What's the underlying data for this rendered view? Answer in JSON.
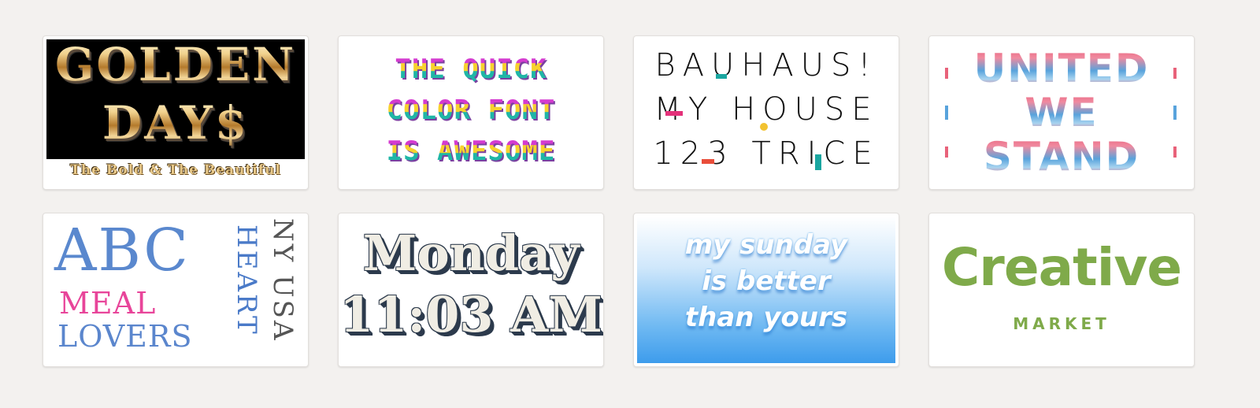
{
  "cards": [
    {
      "line1": "GOLDEN",
      "line2": "DAY$",
      "subtitle": "The Bold & The Beautiful"
    },
    {
      "lines": [
        "THE QUICK",
        "COLOR FONT",
        "IS AWESOME"
      ]
    },
    {
      "lines": [
        "BAUHAUS!",
        "MY HOUSE",
        "123 TRICE"
      ]
    },
    {
      "lines": [
        "UNITED",
        "WE",
        "STAND"
      ]
    },
    {
      "abc": "ABC",
      "meal": "MEAL",
      "lovers": "LOVERS",
      "heart": "HEART",
      "nyusa": "NY USA"
    },
    {
      "line1": "Monday",
      "line2": "11:03 AM"
    },
    {
      "lines": [
        "my sunday",
        "is better",
        "than yours"
      ]
    },
    {
      "title": "Creative",
      "subtitle": "MARKET"
    }
  ],
  "colors": {
    "background": "#f3f1ef",
    "card": "#ffffff",
    "gold": "#e8c98a",
    "magenta": "#d43bd0",
    "teal": "#1aa6a0",
    "red": "#e8627a",
    "blue": "#3e74c6",
    "pink": "#e8459a",
    "navy": "#2c3a4c",
    "sky": "#3d9cec",
    "green": "#7faa4a"
  }
}
